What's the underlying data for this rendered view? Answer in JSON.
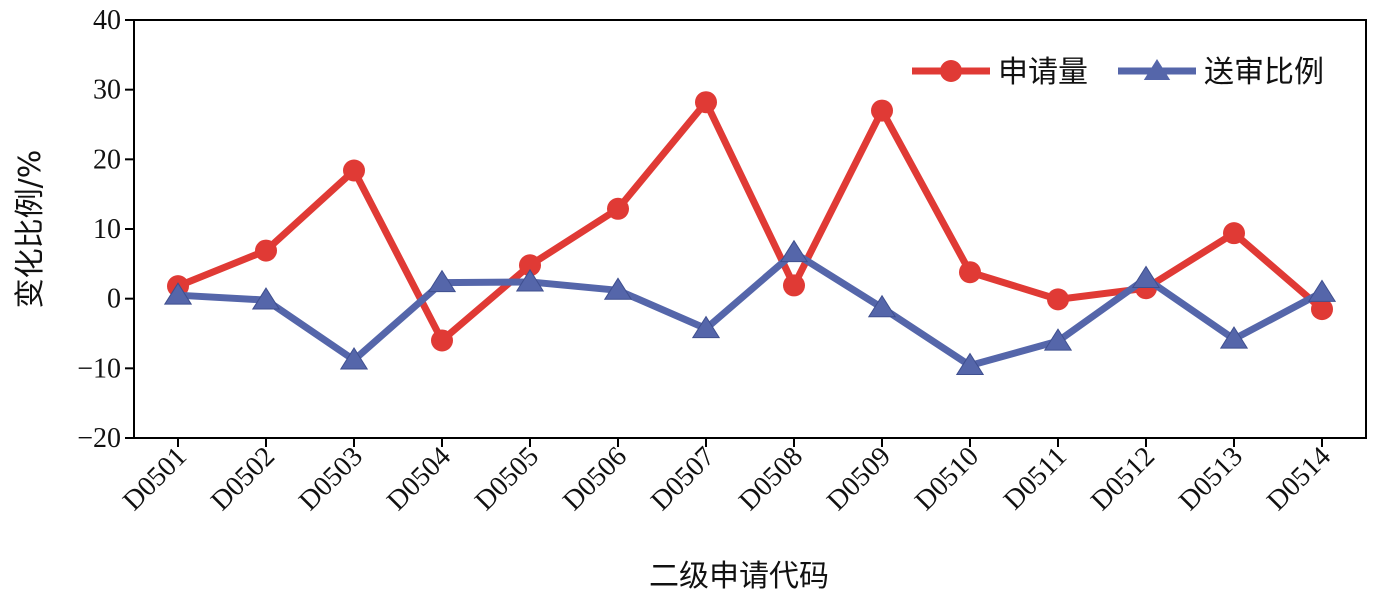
{
  "chart_data": {
    "type": "line",
    "title": "",
    "xlabel": "二级申请代码",
    "ylabel": "变化比例/%",
    "ylim": [
      -20,
      40
    ],
    "yticks": [
      -20,
      -10,
      0,
      10,
      20,
      30,
      40
    ],
    "grid": false,
    "legend_position": "top-right",
    "categories": [
      "D0501",
      "D0502",
      "D0503",
      "D0504",
      "D0505",
      "D0506",
      "D0507",
      "D0508",
      "D0509",
      "D0510",
      "D0511",
      "D0512",
      "D0513",
      "D0514"
    ],
    "series": [
      {
        "name": "申请量",
        "color": "#e03a35",
        "marker": "circle",
        "values": [
          1.8,
          6.9,
          18.4,
          -6.0,
          4.8,
          12.9,
          28.2,
          1.9,
          27.0,
          3.8,
          -0.1,
          1.5,
          9.4,
          -1.5
        ]
      },
      {
        "name": "送审比例",
        "color": "#5566aa",
        "marker": "triangle",
        "values": [
          0.5,
          -0.2,
          -8.8,
          2.3,
          2.4,
          1.2,
          -4.3,
          6.6,
          -1.3,
          -9.6,
          -6.1,
          2.9,
          -5.8,
          0.9
        ]
      }
    ]
  }
}
